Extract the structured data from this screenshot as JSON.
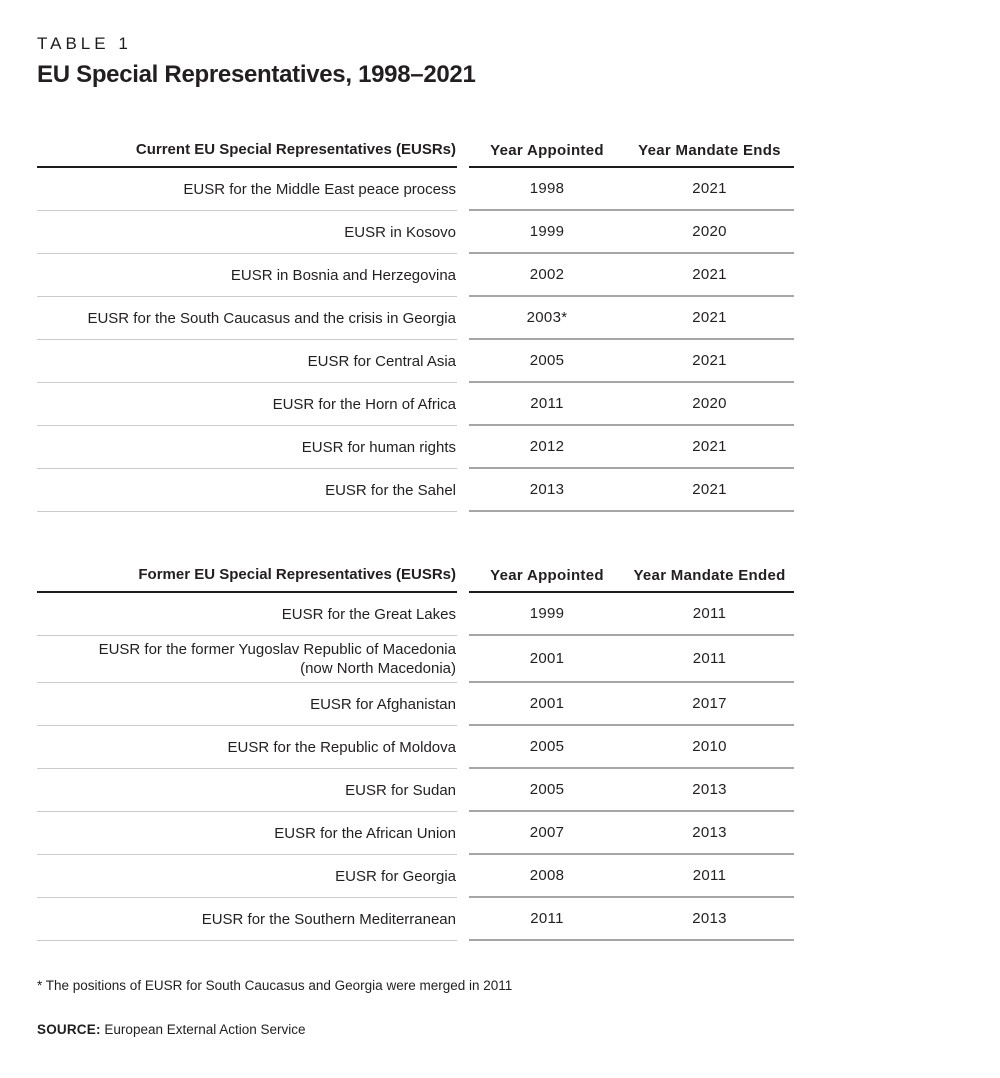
{
  "table_label": "TABLE 1",
  "title": "EU Special Representatives, 1998–2021",
  "current": {
    "headers": {
      "name": "Current EU Special Representatives (EUSRs)",
      "appointed": "Year Appointed",
      "ends": "Year Mandate Ends"
    },
    "rows": [
      [
        "EUSR for the Middle East peace process",
        "1998",
        "2021"
      ],
      [
        "EUSR in Kosovo",
        "1999",
        "2020"
      ],
      [
        "EUSR in Bosnia and Herzegovina",
        "2002",
        "2021"
      ],
      [
        "EUSR for the South Caucasus and the crisis in Georgia",
        "2003*",
        "2021"
      ],
      [
        "EUSR for Central Asia",
        "2005",
        "2021"
      ],
      [
        "EUSR for the Horn of Africa",
        "2011",
        "2020"
      ],
      [
        "EUSR for human rights",
        "2012",
        "2021"
      ],
      [
        "EUSR for the Sahel",
        "2013",
        "2021"
      ]
    ]
  },
  "former": {
    "headers": {
      "name": "Former EU Special Representatives (EUSRs)",
      "appointed": "Year Appointed",
      "ends": "Year Mandate Ended"
    },
    "rows": [
      [
        "EUSR for the Great Lakes",
        "1999",
        "2011"
      ],
      [
        "EUSR for the former Yugoslav Republic of Macedonia\n(now North Macedonia)",
        "2001",
        "2011"
      ],
      [
        "EUSR for Afghanistan",
        "2001",
        "2017"
      ],
      [
        "EUSR for the Republic of Moldova",
        "2005",
        "2010"
      ],
      [
        "EUSR for Sudan",
        "2005",
        "2013"
      ],
      [
        "EUSR for the African Union",
        "2007",
        "2013"
      ],
      [
        "EUSR for Georgia",
        "2008",
        "2011"
      ],
      [
        "EUSR for the Southern Mediterranean",
        "2011",
        "2013"
      ]
    ]
  },
  "footnote": "* The positions of EUSR for South Caucasus and Georgia were merged in 2011",
  "source": {
    "label": "SOURCE:",
    "text": "European External Action Service"
  },
  "colors": {
    "text": "#231f20",
    "header_rule": "#1d1d1d",
    "name_row_rule": "#cbcbcb",
    "years_row_rule": "#a6a6a6",
    "background": "#ffffff"
  }
}
